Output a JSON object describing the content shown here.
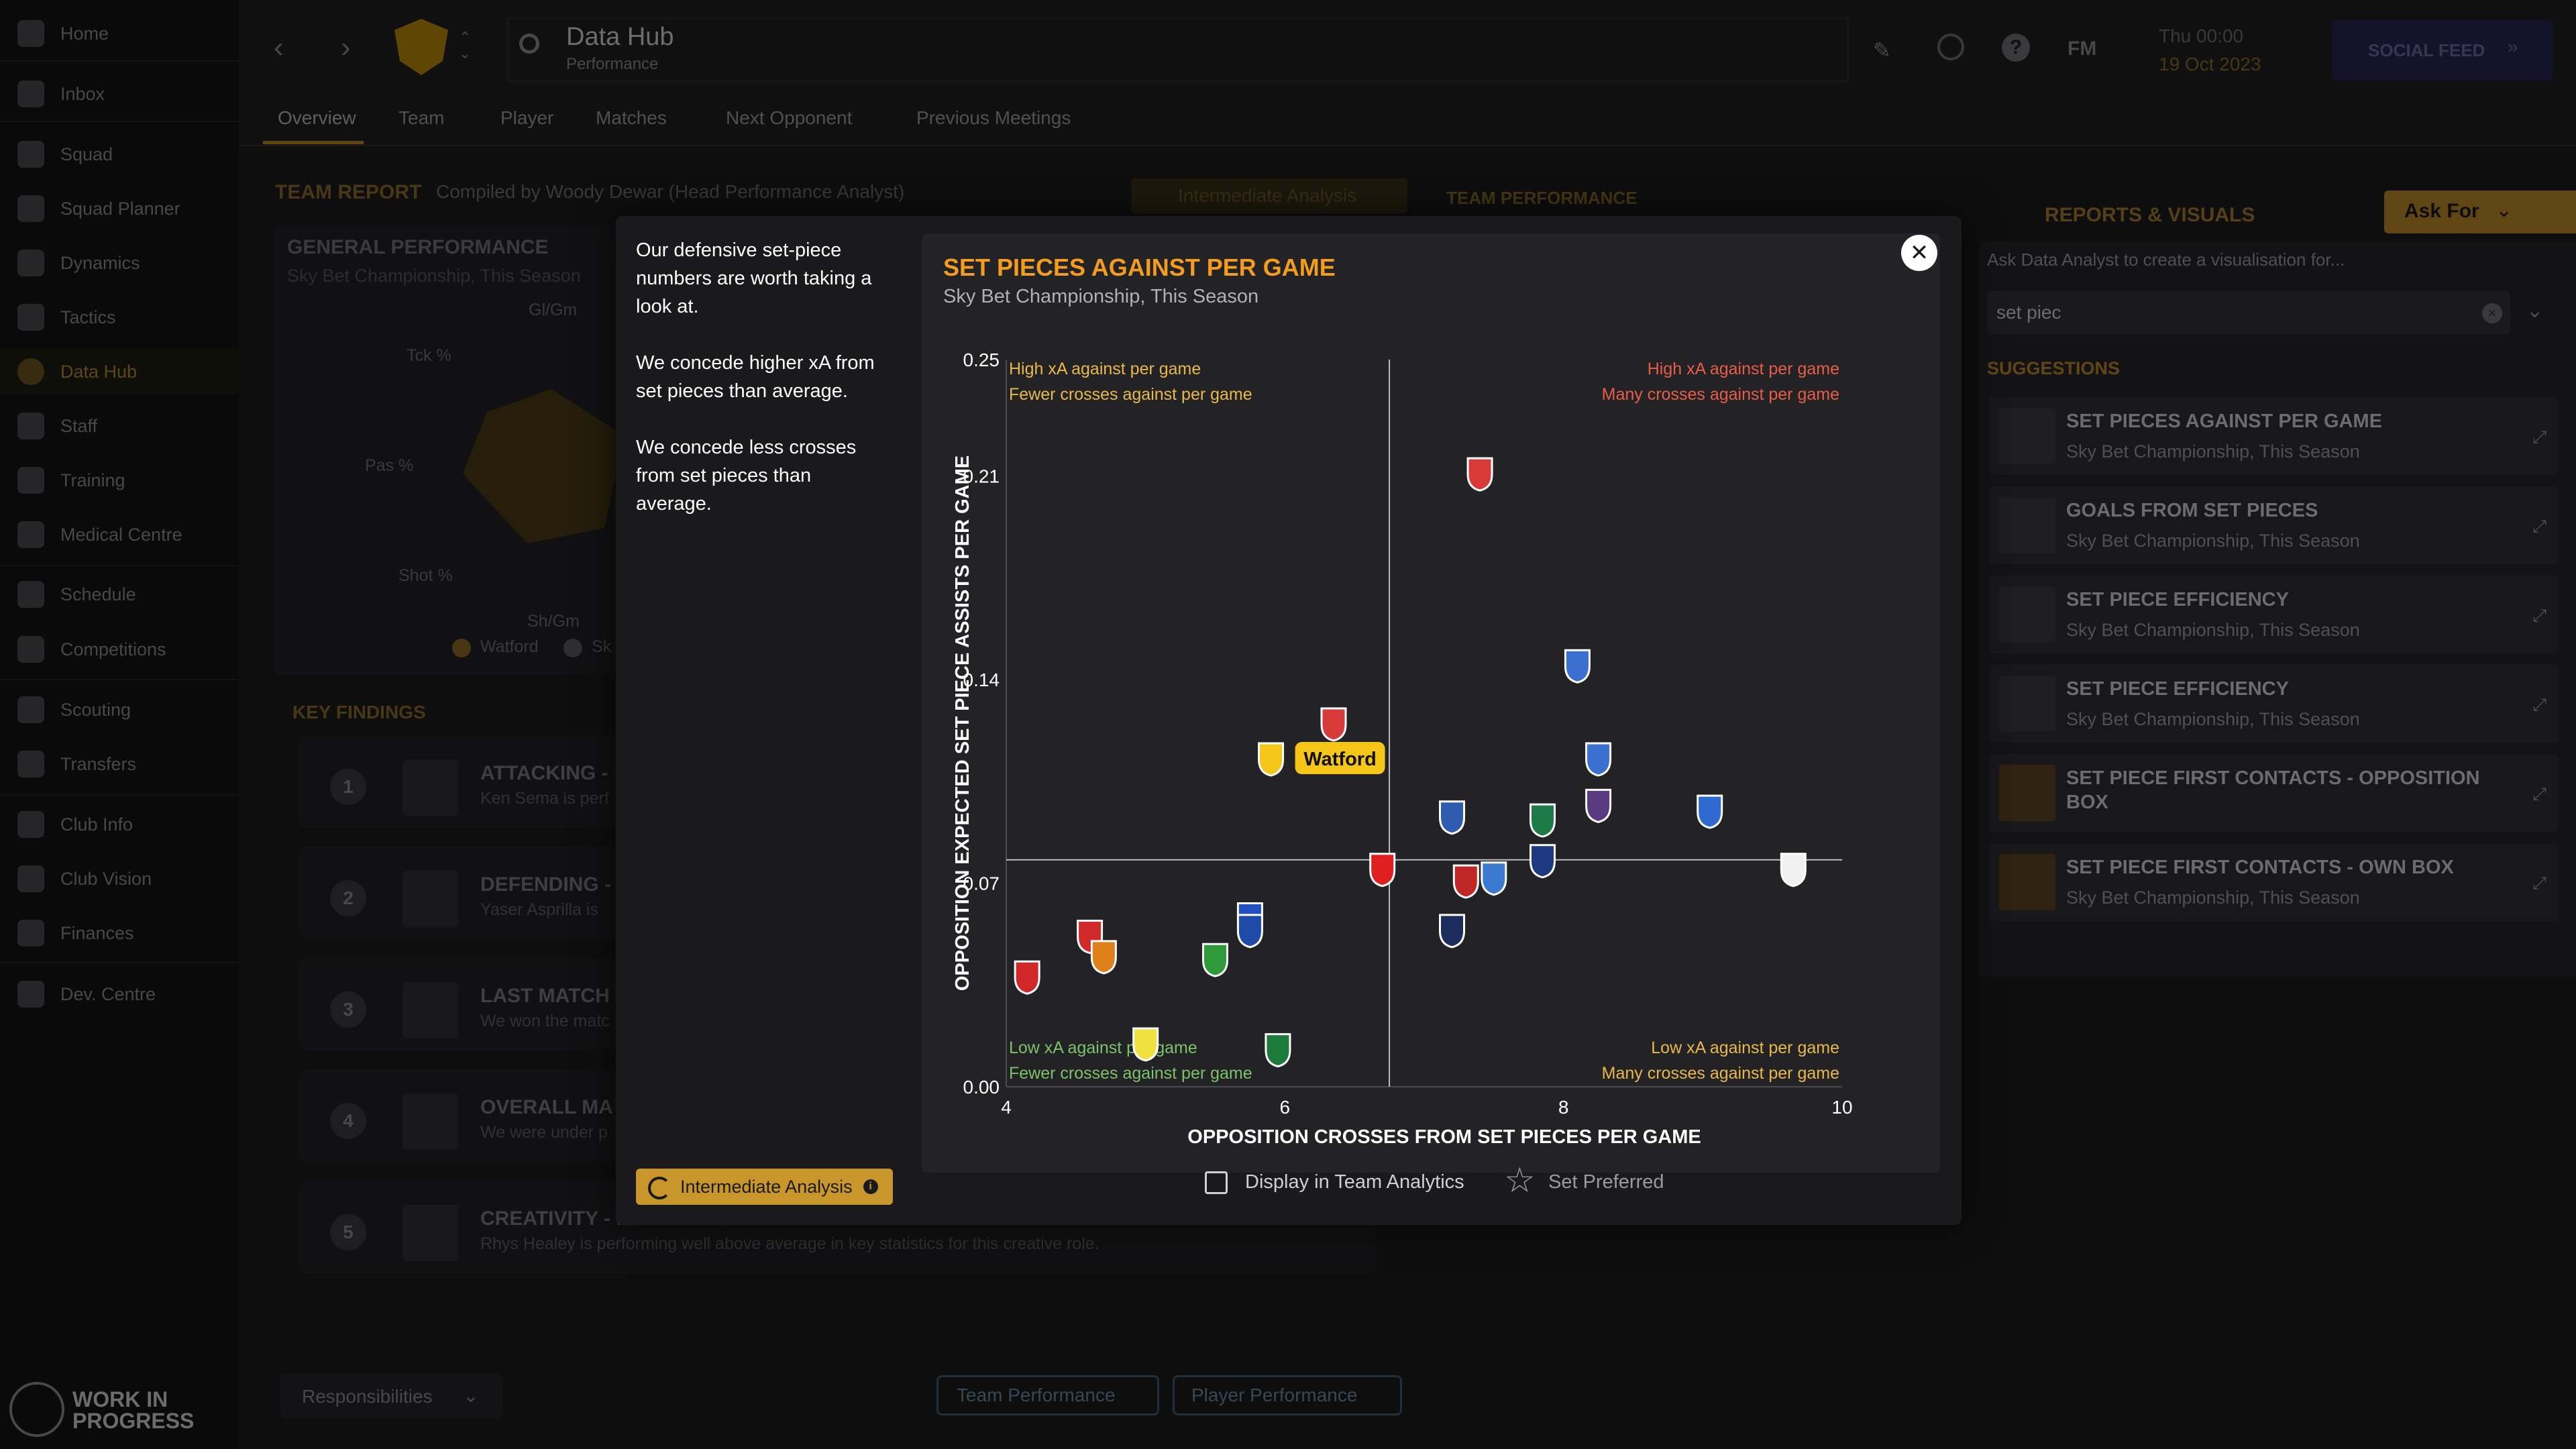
{
  "sidebar": {
    "items": [
      {
        "label": "Home"
      },
      {
        "label": "Inbox"
      },
      {
        "label": "Squad"
      },
      {
        "label": "Squad Planner"
      },
      {
        "label": "Dynamics"
      },
      {
        "label": "Tactics"
      },
      {
        "label": "Data Hub"
      },
      {
        "label": "Staff"
      },
      {
        "label": "Training"
      },
      {
        "label": "Medical Centre"
      },
      {
        "label": "Schedule"
      },
      {
        "label": "Competitions"
      },
      {
        "label": "Scouting"
      },
      {
        "label": "Transfers"
      },
      {
        "label": "Club Info"
      },
      {
        "label": "Club Vision"
      },
      {
        "label": "Finances"
      },
      {
        "label": "Dev. Centre"
      }
    ],
    "active": "Data Hub",
    "footer_line1": "WORK IN",
    "footer_line2": "PROGRESS"
  },
  "header": {
    "title": "Data Hub",
    "subtitle": "Performance",
    "fm_label": "FM",
    "date_line1": "Thu 00:00",
    "date_line2": "19 Oct 2023",
    "social_feed": "SOCIAL FEED",
    "tabs": [
      "Overview",
      "Team",
      "Player",
      "Matches",
      "Next Opponent",
      "Previous Meetings"
    ]
  },
  "background": {
    "team_report": "TEAM REPORT",
    "compiled_by": "Compiled by Woody Dewar (Head Performance Analyst)",
    "analysis_badge": "Intermediate Analysis",
    "team_performance": "TEAM PERFORMANCE",
    "general_performance": "GENERAL PERFORMANCE",
    "gp_sub": "Sky Bet Championship, This Season",
    "radar_labels": [
      "Gl/Gm",
      "Tck %",
      "Pas %",
      "Shot %",
      "Sh/Gm"
    ],
    "legend": [
      "Watford",
      "Sk"
    ],
    "key_findings": "KEY FINDINGS",
    "findings": [
      {
        "num": "1",
        "title": "ATTACKING -",
        "desc": "Ken Sema is perf"
      },
      {
        "num": "2",
        "title": "DEFENDING -",
        "desc": "Yaser Asprilla is"
      },
      {
        "num": "3",
        "title": "LAST MATCH",
        "desc": "We won the matc"
      },
      {
        "num": "4",
        "title": "OVERALL MA",
        "desc": "We were under p"
      },
      {
        "num": "5",
        "title": "CREATIVITY - FORWARDS - R. HEALEY",
        "desc": "Rhys Healey is performing well above average in key statistics for this creative role."
      }
    ],
    "responsibilities": "Responsibilities",
    "team_perf_btn": "Team Performance",
    "player_perf_btn": "Player Performance"
  },
  "right_panel": {
    "title": "REPORTS & VISUALS",
    "ask_for": "Ask For",
    "prompt": "Ask Data Analyst to create a visualisation for...",
    "search_value": "set piec",
    "suggestions_label": "SUGGESTIONS",
    "suggestions": [
      {
        "title": "SET PIECES AGAINST PER GAME",
        "sub": "Sky Bet Championship, This Season"
      },
      {
        "title": "GOALS FROM SET PIECES",
        "sub": "Sky Bet Championship, This Season"
      },
      {
        "title": "SET PIECE EFFICIENCY",
        "sub": "Sky Bet Championship, This Season"
      },
      {
        "title": "SET PIECE EFFICIENCY",
        "sub": "Sky Bet Championship, This Season"
      },
      {
        "title": "SET PIECE FIRST CONTACTS - OPPOSITION BOX",
        "sub": ""
      },
      {
        "title": "SET PIECE FIRST CONTACTS - OWN BOX",
        "sub": "Sky Bet Championship, This Season"
      }
    ]
  },
  "modal": {
    "insights": [
      "Our defensive set-piece numbers are worth taking a look at.",
      "We concede higher xA from set pieces than average.",
      "We concede less crosses from set pieces than average."
    ],
    "analysis_badge": "Intermediate Analysis",
    "display_label": "Display in Team Analytics",
    "preferred_label": "Set Preferred"
  },
  "chart_data": {
    "type": "scatter",
    "title": "SET PIECES AGAINST PER GAME",
    "subtitle": "Sky Bet Championship, This Season",
    "xlabel": "OPPOSITION CROSSES FROM SET PIECES PER GAME",
    "ylabel": "OPPOSITION EXPECTED SET PIECE ASSISTS PER GAME",
    "xlim": [
      4,
      10
    ],
    "ylim": [
      0,
      0.25
    ],
    "x_ticks": [
      "4",
      "6",
      "8",
      "10"
    ],
    "y_ticks": [
      "0.00",
      "0.07",
      "0.14",
      "0.21",
      "0.25"
    ],
    "avg_x": 6.75,
    "avg_y": 0.078,
    "highlight_label": "Watford",
    "quadrants": {
      "top_left": [
        "High xA against per game",
        "Fewer crosses against per game"
      ],
      "top_right": [
        "High xA against per game",
        "Many crosses against per game"
      ],
      "bottom_left": [
        "Low xA against per game",
        "Fewer crosses against per game"
      ],
      "bottom_right": [
        "Low xA against per game",
        "Many crosses against per game"
      ]
    },
    "colors": {
      "highlight": "#f5c518",
      "q_good": "#7cc26a",
      "q_bad": "#e85d4a",
      "q_mid": "#e8b84a",
      "avg_line": "#bdbdc2"
    },
    "points": [
      {
        "x": 7.4,
        "y": 0.211,
        "color": "#d83a3a"
      },
      {
        "x": 8.1,
        "y": 0.145,
        "color": "#3b6fd0"
      },
      {
        "x": 6.35,
        "y": 0.125,
        "color": "#d83a3a"
      },
      {
        "x": 5.9,
        "y": 0.113,
        "color": "#f5c518",
        "highlight": true
      },
      {
        "x": 8.25,
        "y": 0.113,
        "color": "#3b6fd0"
      },
      {
        "x": 8.25,
        "y": 0.097,
        "color": "#5a3a80"
      },
      {
        "x": 7.2,
        "y": 0.093,
        "color": "#2e5db0"
      },
      {
        "x": 7.85,
        "y": 0.092,
        "color": "#1f7a4a"
      },
      {
        "x": 9.05,
        "y": 0.095,
        "color": "#2f6ad0"
      },
      {
        "x": 7.85,
        "y": 0.078,
        "color": "#1d3a80"
      },
      {
        "x": 6.7,
        "y": 0.075,
        "color": "#e02020"
      },
      {
        "x": 7.3,
        "y": 0.071,
        "color": "#c02828"
      },
      {
        "x": 7.5,
        "y": 0.072,
        "color": "#3a7ad0"
      },
      {
        "x": 9.65,
        "y": 0.075,
        "color": "#f0f0f0"
      },
      {
        "x": 5.75,
        "y": 0.058,
        "color": "#2050c0"
      },
      {
        "x": 5.75,
        "y": 0.054,
        "color": "#1e4aa8"
      },
      {
        "x": 7.2,
        "y": 0.054,
        "color": "#1c2c5c"
      },
      {
        "x": 4.6,
        "y": 0.052,
        "color": "#d02a2a"
      },
      {
        "x": 4.7,
        "y": 0.045,
        "color": "#e0801c"
      },
      {
        "x": 5.5,
        "y": 0.044,
        "color": "#2e9a3a"
      },
      {
        "x": 4.15,
        "y": 0.038,
        "color": "#d02828"
      },
      {
        "x": 5.0,
        "y": 0.015,
        "color": "#f0e040"
      },
      {
        "x": 5.95,
        "y": 0.013,
        "color": "#1c7a3a"
      }
    ]
  }
}
